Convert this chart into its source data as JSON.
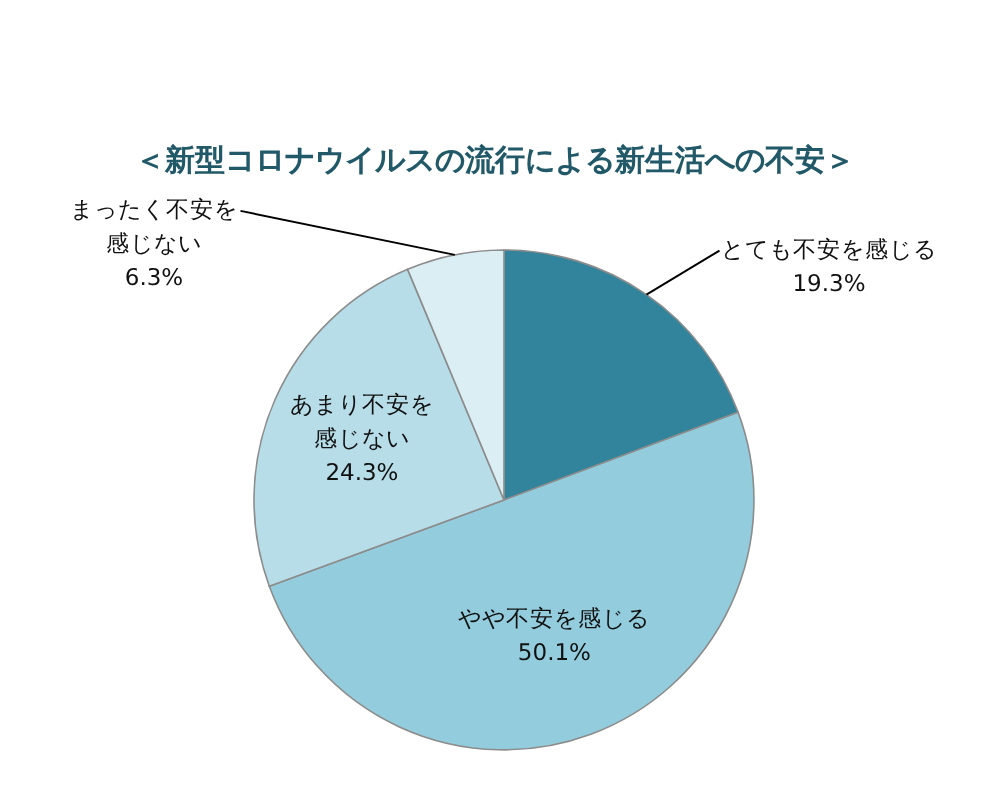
{
  "chart_data": {
    "type": "pie",
    "title": "＜新型コロナウイルスの流行による新生活への不安＞",
    "categories": [
      "とても不安を感じる",
      "やや不安を感じる",
      "あまり不安を感じない",
      "まったく不安を感じない"
    ],
    "values": [
      19.3,
      50.1,
      24.3,
      6.3
    ],
    "value_labels": [
      "19.3%",
      "50.1%",
      "24.3%",
      "6.3%"
    ],
    "colors": [
      "#31849b",
      "#93cddd",
      "#b7dde8",
      "#dbeef4"
    ]
  }
}
